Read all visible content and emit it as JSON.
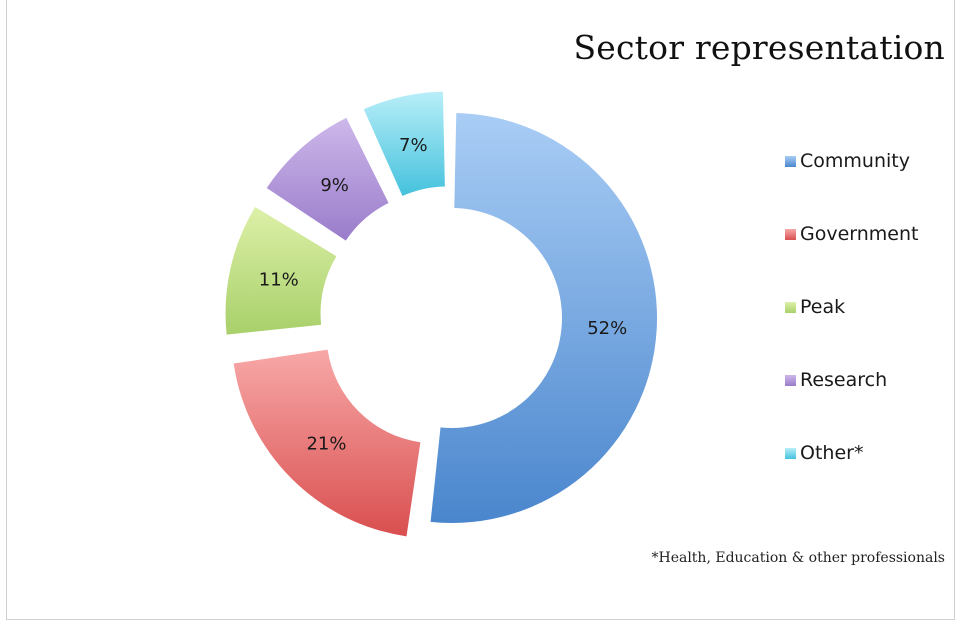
{
  "chart_data": {
    "type": "pie",
    "title": "Sector representation",
    "categories": [
      "Community",
      "Government",
      "Peak",
      "Research",
      "Other*"
    ],
    "values": [
      52,
      21,
      11,
      9,
      7
    ],
    "value_labels": [
      "52%",
      "21%",
      "11%",
      "9%",
      "7%"
    ],
    "colors": {
      "Community": [
        "#a9cdf5",
        "#4a86cd"
      ],
      "Government": [
        "#f8a8a8",
        "#d94f4f"
      ],
      "Peak": [
        "#ddf0a8",
        "#a8d06a"
      ],
      "Research": [
        "#cdb8ea",
        "#9a7ccb"
      ],
      "Other*": [
        "#b8eef8",
        "#45c2dd"
      ]
    },
    "style": "exploded donut",
    "legend_position": "right",
    "footnote": "*Health, Education & other professionals"
  }
}
